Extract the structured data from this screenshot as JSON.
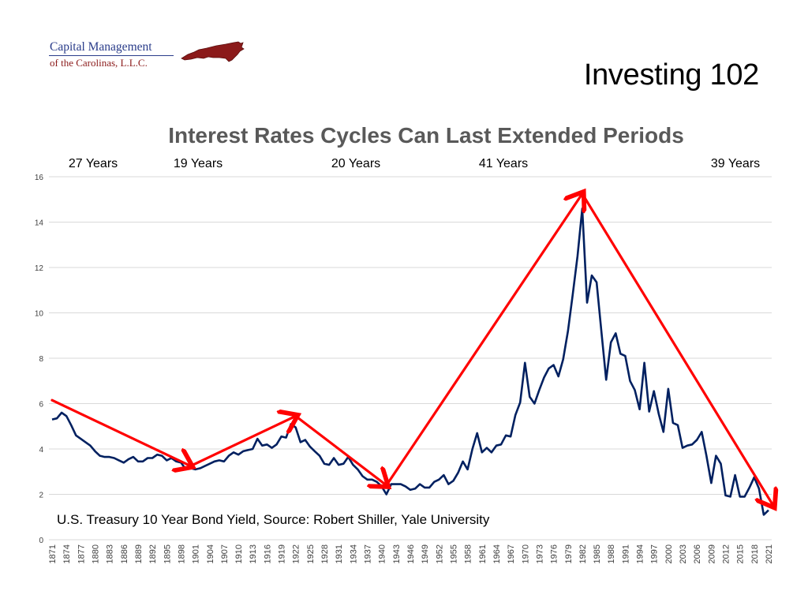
{
  "logo": {
    "line1": "Capital Management",
    "line2": "of the Carolinas, L.L.C.",
    "map_color": "#8b1a1a"
  },
  "slide_title": "Investing 102",
  "period_labels": [
    "27 Years",
    "19 Years",
    "20 Years",
    "41 Years",
    "39 Years"
  ],
  "source_note": "U.S. Treasury 10 Year Bond Yield, Source: Robert Shiller, Yale University",
  "colors": {
    "series": "#002060",
    "trend_arrows": "#ff0000",
    "grid": "#d9d9d9"
  },
  "chart_data": {
    "type": "line",
    "title": "Interest Rates Cycles Can Last Extended Periods",
    "xlabel": "",
    "ylabel": "",
    "ylim": [
      0,
      16
    ],
    "y_ticks": [
      0,
      2,
      4,
      6,
      8,
      10,
      12,
      14,
      16
    ],
    "x_tick_labels": [
      "1871",
      "1874",
      "1877",
      "1880",
      "1883",
      "1886",
      "1889",
      "1892",
      "1895",
      "1898",
      "1901",
      "1904",
      "1907",
      "1910",
      "1913",
      "1916",
      "1919",
      "1922",
      "1925",
      "1928",
      "1931",
      "1934",
      "1937",
      "1940",
      "1943",
      "1946",
      "1949",
      "1952",
      "1955",
      "1958",
      "1961",
      "1964",
      "1967",
      "1970",
      "1973",
      "1976",
      "1979",
      "1982",
      "1985",
      "1988",
      "1991",
      "1994",
      "1997",
      "2000",
      "2003",
      "2006",
      "2009",
      "2012",
      "2015",
      "2018",
      "2021"
    ],
    "grid": "horizontal",
    "series": [
      {
        "x": [
          1871,
          1872,
          1873,
          1874,
          1875,
          1876,
          1877,
          1878,
          1879,
          1880,
          1881,
          1882,
          1883,
          1884,
          1885,
          1886,
          1887,
          1888,
          1889,
          1890,
          1891,
          1892,
          1893,
          1894,
          1895,
          1896,
          1897,
          1898,
          1899,
          1900,
          1901,
          1902,
          1903,
          1904,
          1905,
          1906,
          1907,
          1908,
          1909,
          1910,
          1911,
          1912,
          1913,
          1914,
          1915,
          1916,
          1917,
          1918,
          1919,
          1920,
          1921,
          1922,
          1923,
          1924,
          1925,
          1926,
          1927,
          1928,
          1929,
          1930,
          1931,
          1932,
          1933,
          1934,
          1935,
          1936,
          1937,
          1938,
          1939,
          1940,
          1941,
          1942,
          1943,
          1944,
          1945,
          1946,
          1947,
          1948,
          1949,
          1950,
          1951,
          1952,
          1953,
          1954,
          1955,
          1956,
          1957,
          1958,
          1959,
          1960,
          1961,
          1962,
          1963,
          1964,
          1965,
          1966,
          1967,
          1968,
          1969,
          1970,
          1971,
          1972,
          1973,
          1974,
          1975,
          1976,
          1977,
          1978,
          1979,
          1980,
          1981,
          1982,
          1983,
          1984,
          1985,
          1986,
          1987,
          1988,
          1989,
          1990,
          1991,
          1992,
          1993,
          1994,
          1995,
          1996,
          1997,
          1998,
          1999,
          2000,
          2001,
          2002,
          2003,
          2004,
          2005,
          2006,
          2007,
          2008,
          2009,
          2010,
          2011,
          2012,
          2013,
          2014,
          2015,
          2016,
          2017,
          2018,
          2019,
          2020,
          2021
        ],
        "y": [
          5.3,
          5.35,
          5.6,
          5.45,
          5.05,
          4.6,
          4.45,
          4.3,
          4.15,
          3.9,
          3.7,
          3.65,
          3.65,
          3.6,
          3.5,
          3.4,
          3.55,
          3.65,
          3.45,
          3.45,
          3.6,
          3.6,
          3.75,
          3.7,
          3.5,
          3.6,
          3.45,
          3.4,
          3.1,
          3.15,
          3.1,
          3.15,
          3.25,
          3.35,
          3.45,
          3.5,
          3.45,
          3.7,
          3.85,
          3.75,
          3.9,
          3.95,
          4.0,
          4.45,
          4.15,
          4.2,
          4.05,
          4.2,
          4.55,
          4.5,
          5.1,
          4.95,
          4.3,
          4.4,
          4.1,
          3.9,
          3.7,
          3.35,
          3.3,
          3.6,
          3.3,
          3.35,
          3.65,
          3.3,
          3.1,
          2.8,
          2.65,
          2.65,
          2.55,
          2.35,
          2.0,
          2.45,
          2.45,
          2.45,
          2.35,
          2.2,
          2.25,
          2.45,
          2.3,
          2.3,
          2.55,
          2.65,
          2.85,
          2.45,
          2.6,
          2.95,
          3.45,
          3.1,
          4.0,
          4.7,
          3.85,
          4.05,
          3.85,
          4.15,
          4.2,
          4.6,
          4.55,
          5.5,
          6.05,
          7.8,
          6.3,
          6.0,
          6.6,
          7.15,
          7.55,
          7.7,
          7.2,
          7.95,
          9.2,
          10.8,
          12.5,
          14.6,
          10.45,
          11.65,
          11.35,
          9.2,
          7.05,
          8.7,
          9.1,
          8.2,
          8.1,
          7.0,
          6.6,
          5.75,
          7.8,
          5.65,
          6.55,
          5.55,
          4.75,
          6.65,
          5.15,
          5.05,
          4.05,
          4.15,
          4.2,
          4.4,
          4.75,
          3.7,
          2.5,
          3.7,
          3.35,
          1.95,
          1.9,
          2.85,
          1.9,
          1.9,
          2.3,
          2.75,
          2.25,
          1.1,
          1.3
        ]
      }
    ]
  }
}
